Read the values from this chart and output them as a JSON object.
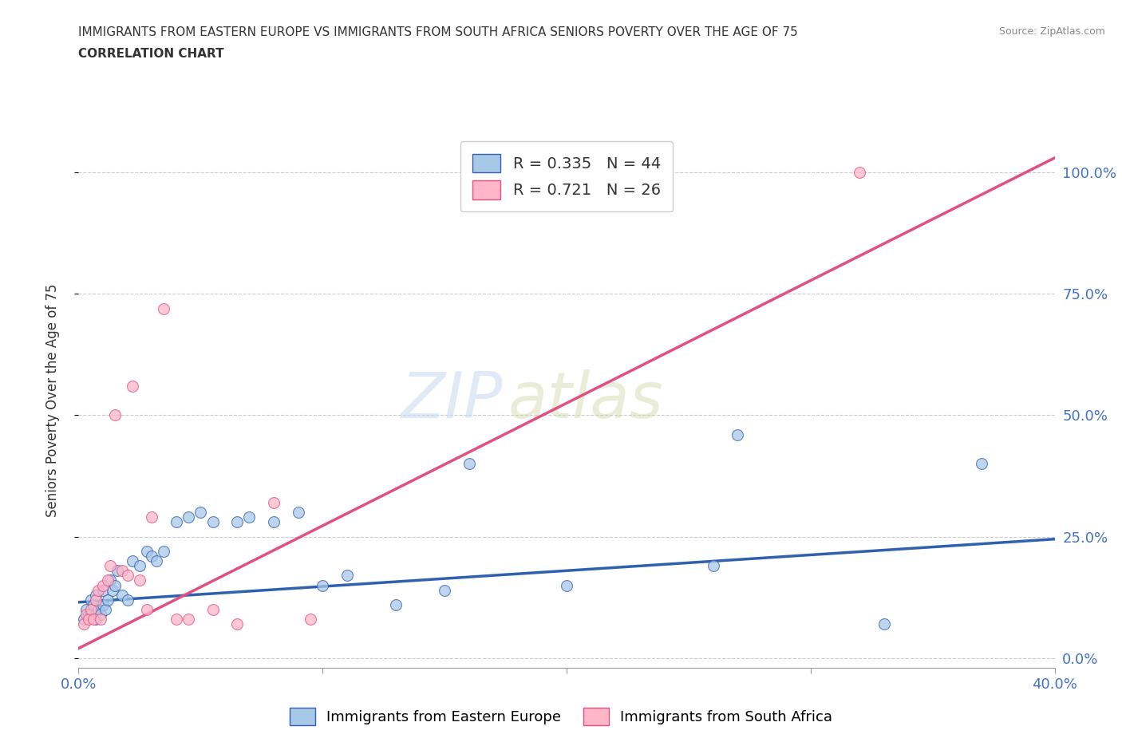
{
  "title_line1": "IMMIGRANTS FROM EASTERN EUROPE VS IMMIGRANTS FROM SOUTH AFRICA SENIORS POVERTY OVER THE AGE OF 75",
  "title_line2": "CORRELATION CHART",
  "source": "Source: ZipAtlas.com",
  "ylabel": "Seniors Poverty Over the Age of 75",
  "ytick_labels": [
    "0.0%",
    "25.0%",
    "50.0%",
    "75.0%",
    "100.0%"
  ],
  "ytick_values": [
    0.0,
    0.25,
    0.5,
    0.75,
    1.0
  ],
  "xlim": [
    0.0,
    0.4
  ],
  "ylim": [
    -0.02,
    1.08
  ],
  "watermark_zip": "ZIP",
  "watermark_atlas": "atlas",
  "legend_label1": "R = 0.335   N = 44",
  "legend_label2": "R = 0.721   N = 26",
  "color_blue": "#a8c8e8",
  "color_pink": "#ffb6c8",
  "line_color_blue": "#3060b0",
  "line_color_pink": "#e05080",
  "scatter_size": 100,
  "scatter_alpha": 0.75,
  "blue_x": [
    0.002,
    0.003,
    0.004,
    0.005,
    0.005,
    0.006,
    0.007,
    0.007,
    0.008,
    0.009,
    0.01,
    0.01,
    0.011,
    0.012,
    0.013,
    0.014,
    0.015,
    0.016,
    0.018,
    0.02,
    0.022,
    0.025,
    0.028,
    0.03,
    0.032,
    0.035,
    0.04,
    0.045,
    0.05,
    0.055,
    0.065,
    0.07,
    0.08,
    0.09,
    0.1,
    0.11,
    0.13,
    0.15,
    0.16,
    0.2,
    0.26,
    0.27,
    0.33,
    0.37
  ],
  "blue_y": [
    0.08,
    0.1,
    0.09,
    0.12,
    0.09,
    0.11,
    0.08,
    0.13,
    0.1,
    0.09,
    0.14,
    0.11,
    0.1,
    0.12,
    0.16,
    0.14,
    0.15,
    0.18,
    0.13,
    0.12,
    0.2,
    0.19,
    0.22,
    0.21,
    0.2,
    0.22,
    0.28,
    0.29,
    0.3,
    0.28,
    0.28,
    0.29,
    0.28,
    0.3,
    0.15,
    0.17,
    0.11,
    0.14,
    0.4,
    0.15,
    0.19,
    0.46,
    0.07,
    0.4
  ],
  "pink_x": [
    0.002,
    0.003,
    0.004,
    0.005,
    0.006,
    0.007,
    0.008,
    0.009,
    0.01,
    0.012,
    0.013,
    0.015,
    0.018,
    0.02,
    0.022,
    0.025,
    0.028,
    0.03,
    0.035,
    0.04,
    0.045,
    0.055,
    0.065,
    0.08,
    0.095,
    0.32
  ],
  "pink_y": [
    0.07,
    0.09,
    0.08,
    0.1,
    0.08,
    0.12,
    0.14,
    0.08,
    0.15,
    0.16,
    0.19,
    0.5,
    0.18,
    0.17,
    0.56,
    0.16,
    0.1,
    0.29,
    0.72,
    0.08,
    0.08,
    0.1,
    0.07,
    0.32,
    0.08,
    1.0
  ],
  "blue_trend_x": [
    0.0,
    0.4
  ],
  "blue_trend_y": [
    0.115,
    0.245
  ],
  "pink_trend_x": [
    0.0,
    0.4
  ],
  "pink_trend_y": [
    0.02,
    1.03
  ],
  "bottom_legend1": "Immigrants from Eastern Europe",
  "bottom_legend2": "Immigrants from South Africa",
  "title_color": "#333333",
  "axis_label_color": "#4472c4",
  "grid_color": "#cccccc",
  "bg_color": "#ffffff"
}
